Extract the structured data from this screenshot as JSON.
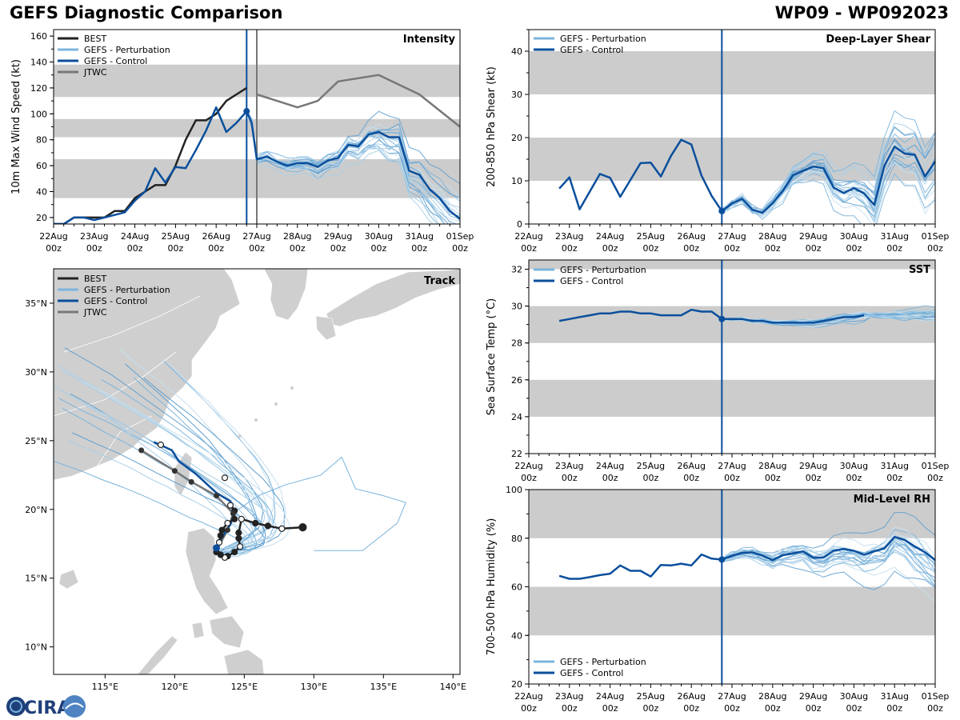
{
  "header": {
    "title": "GEFS Diagnostic Comparison",
    "storm_id": "WP09 - WP092023"
  },
  "colors": {
    "best": "#222222",
    "pert": "#7bb4dc",
    "control": "#0b4f9c",
    "jtwc": "#777777",
    "band": "#cccccc",
    "land": "#cfcfcf"
  },
  "x_ticks": {
    "top": [
      "22Aug",
      "23Aug",
      "24Aug",
      "25Aug",
      "26Aug",
      "27Aug",
      "28Aug",
      "29Aug",
      "30Aug",
      "31Aug",
      "01Sep"
    ],
    "bottom": [
      "00z",
      "00z",
      "00z",
      "00z",
      "00z",
      "00z",
      "00z",
      "00z",
      "00z",
      "00z",
      "00z"
    ]
  },
  "legend_labels": {
    "best": "BEST",
    "pert": "GEFS - Perturbation",
    "control": "GEFS - Control",
    "jtwc": "JTWC"
  },
  "logo_text": "CIRA",
  "chart_data": [
    {
      "id": "intensity",
      "type": "line",
      "title": "Intensity",
      "ylabel": "10m Max Wind Speed (kt)",
      "xlim": [
        0,
        10
      ],
      "ylim": [
        15,
        165
      ],
      "yticks": [
        20,
        40,
        60,
        80,
        100,
        120,
        140,
        160
      ],
      "bands": [
        [
          35,
          65
        ],
        [
          82,
          96
        ],
        [
          113,
          138
        ]
      ],
      "init_x": 4.75,
      "jtwc_x": 5.0,
      "series": [
        {
          "name": "BEST",
          "x": [
            0,
            0.25,
            0.5,
            0.75,
            1,
            1.25,
            1.5,
            1.75,
            2,
            2.25,
            2.5,
            2.75,
            3,
            3.25,
            3.5,
            3.75,
            4,
            4.25,
            4.5,
            4.75
          ],
          "values": [
            15,
            15,
            20,
            20,
            20,
            20,
            25,
            25,
            35,
            40,
            45,
            45,
            60,
            80,
            95,
            95,
            100,
            110,
            115,
            120
          ]
        },
        {
          "name": "GEFS - Control",
          "x": [
            0,
            0.25,
            0.5,
            0.75,
            1,
            1.25,
            1.5,
            1.75,
            2,
            2.25,
            2.5,
            2.75,
            3,
            3.25,
            3.5,
            3.75,
            4,
            4.25,
            4.5,
            4.75,
            4.875,
            5,
            5.25,
            5.5,
            5.75,
            6,
            6.25,
            6.5,
            6.75,
            7,
            7.25,
            7.5,
            7.75,
            8,
            8.25,
            8.5,
            8.75,
            9,
            9.25,
            9.5,
            9.75,
            10
          ],
          "values": [
            15,
            15,
            20,
            20,
            18,
            20,
            22,
            24,
            33,
            40,
            58,
            47,
            59,
            58,
            72,
            87,
            105,
            86,
            93,
            102,
            93,
            65,
            67,
            63,
            60,
            62,
            62,
            59,
            64,
            66,
            76,
            75,
            84,
            86,
            82,
            82,
            56,
            53,
            42,
            35,
            25,
            19
          ]
        },
        {
          "name": "JTWC",
          "x": [
            5,
            5.5,
            6,
            6.5,
            7,
            8,
            9,
            10
          ],
          "values": [
            115,
            110,
            105,
            110,
            125,
            130,
            115,
            90
          ]
        }
      ]
    },
    {
      "id": "shear",
      "type": "line",
      "title": "Deep-Layer Shear",
      "ylabel": "200-850 hPa Shear (kt)",
      "xlim": [
        0,
        10
      ],
      "ylim": [
        0,
        45
      ],
      "yticks": [
        0,
        10,
        20,
        30,
        40
      ],
      "bands": [
        [
          10,
          20
        ],
        [
          30,
          40
        ]
      ],
      "init_x": 4.75,
      "series": [
        {
          "name": "GEFS - Control",
          "x": [
            0.75,
            1,
            1.25,
            1.75,
            2,
            2.25,
            2.75,
            3,
            3.25,
            3.5,
            3.75,
            4,
            4.25,
            4.5,
            4.75,
            5,
            5.25,
            5.5,
            5.75,
            6,
            6.25,
            6.5,
            6.75,
            7,
            7.25,
            7.5,
            7.75,
            8,
            8.25,
            8.5,
            8.75,
            9,
            9.25,
            9.5,
            9.75,
            10
          ],
          "values": [
            8.2,
            10.8,
            3.4,
            11.6,
            10.7,
            6.3,
            14.1,
            14.2,
            11.0,
            15.8,
            19.5,
            18.4,
            11.2,
            6.5,
            3.0,
            4.8,
            5.8,
            3.3,
            2.6,
            4.8,
            7.7,
            11.3,
            12.3,
            13.3,
            12.9,
            8.4,
            7.2,
            8.3,
            7.1,
            4.4,
            13.5,
            17.9,
            16.3,
            16.0,
            11.0,
            14.5
          ]
        }
      ]
    },
    {
      "id": "sst",
      "type": "line",
      "title": "SST",
      "ylabel": "Sea Surface Temp (°C)",
      "xlim": [
        0,
        10
      ],
      "ylim": [
        22,
        32.5
      ],
      "yticks": [
        22,
        24,
        26,
        28,
        30,
        32
      ],
      "bands": [
        [
          24,
          26
        ],
        [
          28,
          30
        ],
        [
          32,
          33
        ]
      ],
      "init_x": 4.75,
      "series": [
        {
          "name": "GEFS - Control",
          "x": [
            0.75,
            1,
            1.25,
            1.5,
            1.75,
            2,
            2.25,
            2.5,
            2.75,
            3,
            3.25,
            3.5,
            3.75,
            4,
            4.25,
            4.5,
            4.75,
            5,
            5.25,
            5.5,
            5.75,
            6,
            6.25,
            6.5,
            6.75,
            7,
            7.25,
            7.5,
            7.75,
            8,
            8.25
          ],
          "values": [
            29.2,
            29.3,
            29.4,
            29.5,
            29.6,
            29.6,
            29.7,
            29.7,
            29.6,
            29.6,
            29.5,
            29.5,
            29.5,
            29.8,
            29.7,
            29.7,
            29.3,
            29.3,
            29.3,
            29.2,
            29.2,
            29.1,
            29.1,
            29.1,
            29.1,
            29.1,
            29.2,
            29.3,
            29.4,
            29.4,
            29.5
          ]
        }
      ]
    },
    {
      "id": "rh",
      "type": "line",
      "title": "Mid-Level RH",
      "ylabel": "700-500 hPa Humidity (%)",
      "xlim": [
        0,
        10
      ],
      "ylim": [
        20,
        100
      ],
      "yticks": [
        20,
        40,
        60,
        80,
        100
      ],
      "bands": [
        [
          40,
          60
        ],
        [
          80,
          100
        ]
      ],
      "init_x": 4.75,
      "series": [
        {
          "name": "GEFS - Control",
          "x": [
            0.75,
            1,
            1.25,
            1.5,
            1.75,
            2,
            2.25,
            2.5,
            2.75,
            3,
            3.25,
            3.5,
            3.75,
            4,
            4.25,
            4.5,
            4.75,
            5,
            5.25,
            5.5,
            5.75,
            6,
            6.25,
            6.5,
            6.75,
            7,
            7.25,
            7.5,
            7.75,
            8,
            8.25,
            8.5,
            8.75,
            9,
            9.25,
            9.5,
            9.75,
            10
          ],
          "values": [
            64.5,
            63.3,
            63.3,
            64,
            64.8,
            65.4,
            68.8,
            66.6,
            66.6,
            64.2,
            69,
            68.8,
            69.5,
            68.8,
            73.3,
            71.6,
            71.2,
            72.8,
            74,
            74.2,
            72.8,
            71,
            73,
            73.8,
            74.6,
            72,
            72,
            74.8,
            75.6,
            74.8,
            73.2,
            74.6,
            75.8,
            80.5,
            79.3,
            76.6,
            74.2,
            71
          ]
        }
      ]
    },
    {
      "id": "track",
      "type": "map",
      "title": "Track",
      "lon_range": [
        111.3,
        140.5
      ],
      "lat_range": [
        8,
        37.5
      ],
      "lon_ticks": [
        "115°E",
        "120°E",
        "125°E",
        "130°E",
        "135°E",
        "140°E"
      ],
      "lat_ticks": [
        "10°N",
        "15°N",
        "20°N",
        "25°N",
        "30°N",
        "35°N"
      ],
      "best_track": [
        [
          129.2,
          18.7
        ],
        [
          127.7,
          18.6
        ],
        [
          126.7,
          18.8
        ],
        [
          125.8,
          19.0
        ],
        [
          124.8,
          19.3
        ],
        [
          124.6,
          18.3
        ],
        [
          124.6,
          17.9
        ],
        [
          124.7,
          17.3
        ],
        [
          124.3,
          16.9
        ],
        [
          123.8,
          16.6
        ],
        [
          123.6,
          16.5
        ],
        [
          123.3,
          16.7
        ],
        [
          123.0,
          16.9
        ],
        [
          123.2,
          17.6
        ],
        [
          123.3,
          18.1
        ],
        [
          123.4,
          18.5
        ],
        [
          123.8,
          19.0
        ],
        [
          124.3,
          19.3
        ],
        [
          124.3,
          19.9
        ],
        [
          124.0,
          20.3
        ]
      ],
      "control_track": [
        [
          123.0,
          17.2
        ],
        [
          123.3,
          17.8
        ],
        [
          124.0,
          18.9
        ],
        [
          124.3,
          19.7
        ],
        [
          124.0,
          20.6
        ],
        [
          123.0,
          21.2
        ],
        [
          121.5,
          22.6
        ],
        [
          120.3,
          23.5
        ],
        [
          119.8,
          24.3
        ],
        [
          118.5,
          24.9
        ]
      ],
      "jtwc_track": [
        [
          123.0,
          17.0
        ],
        [
          123.8,
          18.5
        ],
        [
          124.2,
          19.7
        ],
        [
          123.0,
          21.0
        ],
        [
          121.2,
          22.0
        ],
        [
          120.0,
          22.8
        ],
        [
          117.6,
          24.3
        ]
      ]
    }
  ]
}
